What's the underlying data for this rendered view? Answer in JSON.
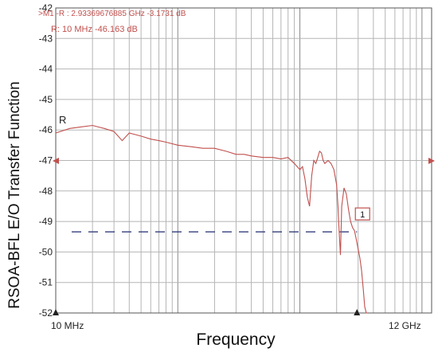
{
  "chart_data": {
    "type": "line",
    "xlabel": "Frequency",
    "ylabel": "RSOA-BFL E/O Transfer Function",
    "x_start_label": "10 MHz",
    "x_end_label": "12 GHz",
    "xlim": [
      0.01,
      12
    ],
    "x_unit": "GHz",
    "ylim": [
      -52,
      -42
    ],
    "y_unit": "dB",
    "yticks": [
      "-42",
      "-43",
      "-44",
      "-45",
      "-46",
      "-47",
      "-48",
      "-49",
      "-50",
      "-51",
      "-52"
    ],
    "grid": true,
    "x_scale": "log",
    "reference_label": "R",
    "marker": {
      "id": "1",
      "readout_line1": ">M1 -R : 2.93369676885 GHz -3.1731 dB",
      "readout_line2": "R:  10 MHz -46.163 dB",
      "x": 2.934,
      "y": -49.34
    },
    "reference_level": -49.34,
    "trace_color": "#c0504d",
    "series": [
      {
        "x": [
          0.01,
          0.013,
          0.016,
          0.02,
          0.025,
          0.03,
          0.035,
          0.04,
          0.05,
          0.06,
          0.07,
          0.08,
          0.1,
          0.13,
          0.16,
          0.2,
          0.25,
          0.3,
          0.35,
          0.4,
          0.5,
          0.6,
          0.7,
          0.8,
          0.9,
          1.0,
          1.05,
          1.1,
          1.15,
          1.2,
          1.25,
          1.3,
          1.35,
          1.4,
          1.45,
          1.5,
          1.55,
          1.6,
          1.7,
          1.8,
          1.9,
          2.0,
          2.05,
          2.1,
          2.15,
          2.2,
          2.3,
          2.4,
          2.5,
          2.6,
          2.7,
          2.8,
          2.9,
          3.0,
          3.1,
          3.2,
          3.3,
          3.4,
          3.5,
          3.55
        ],
        "y": [
          -46.1,
          -45.95,
          -45.9,
          -45.85,
          -45.95,
          -46.05,
          -46.35,
          -46.1,
          -46.2,
          -46.3,
          -46.35,
          -46.4,
          -46.5,
          -46.55,
          -46.6,
          -46.6,
          -46.7,
          -46.8,
          -46.8,
          -46.85,
          -46.9,
          -46.9,
          -46.95,
          -46.9,
          -47.1,
          -47.3,
          -47.2,
          -47.6,
          -48.2,
          -48.5,
          -47.5,
          -47.0,
          -47.1,
          -46.9,
          -46.7,
          -46.75,
          -47.0,
          -47.1,
          -47.0,
          -47.1,
          -47.3,
          -47.8,
          -48.5,
          -49.4,
          -50.1,
          -48.5,
          -47.9,
          -48.1,
          -48.6,
          -49.0,
          -49.2,
          -49.3,
          -49.6,
          -49.9,
          -50.2,
          -50.6,
          -51.2,
          -51.8,
          -52.0,
          -52.0
        ]
      }
    ]
  }
}
